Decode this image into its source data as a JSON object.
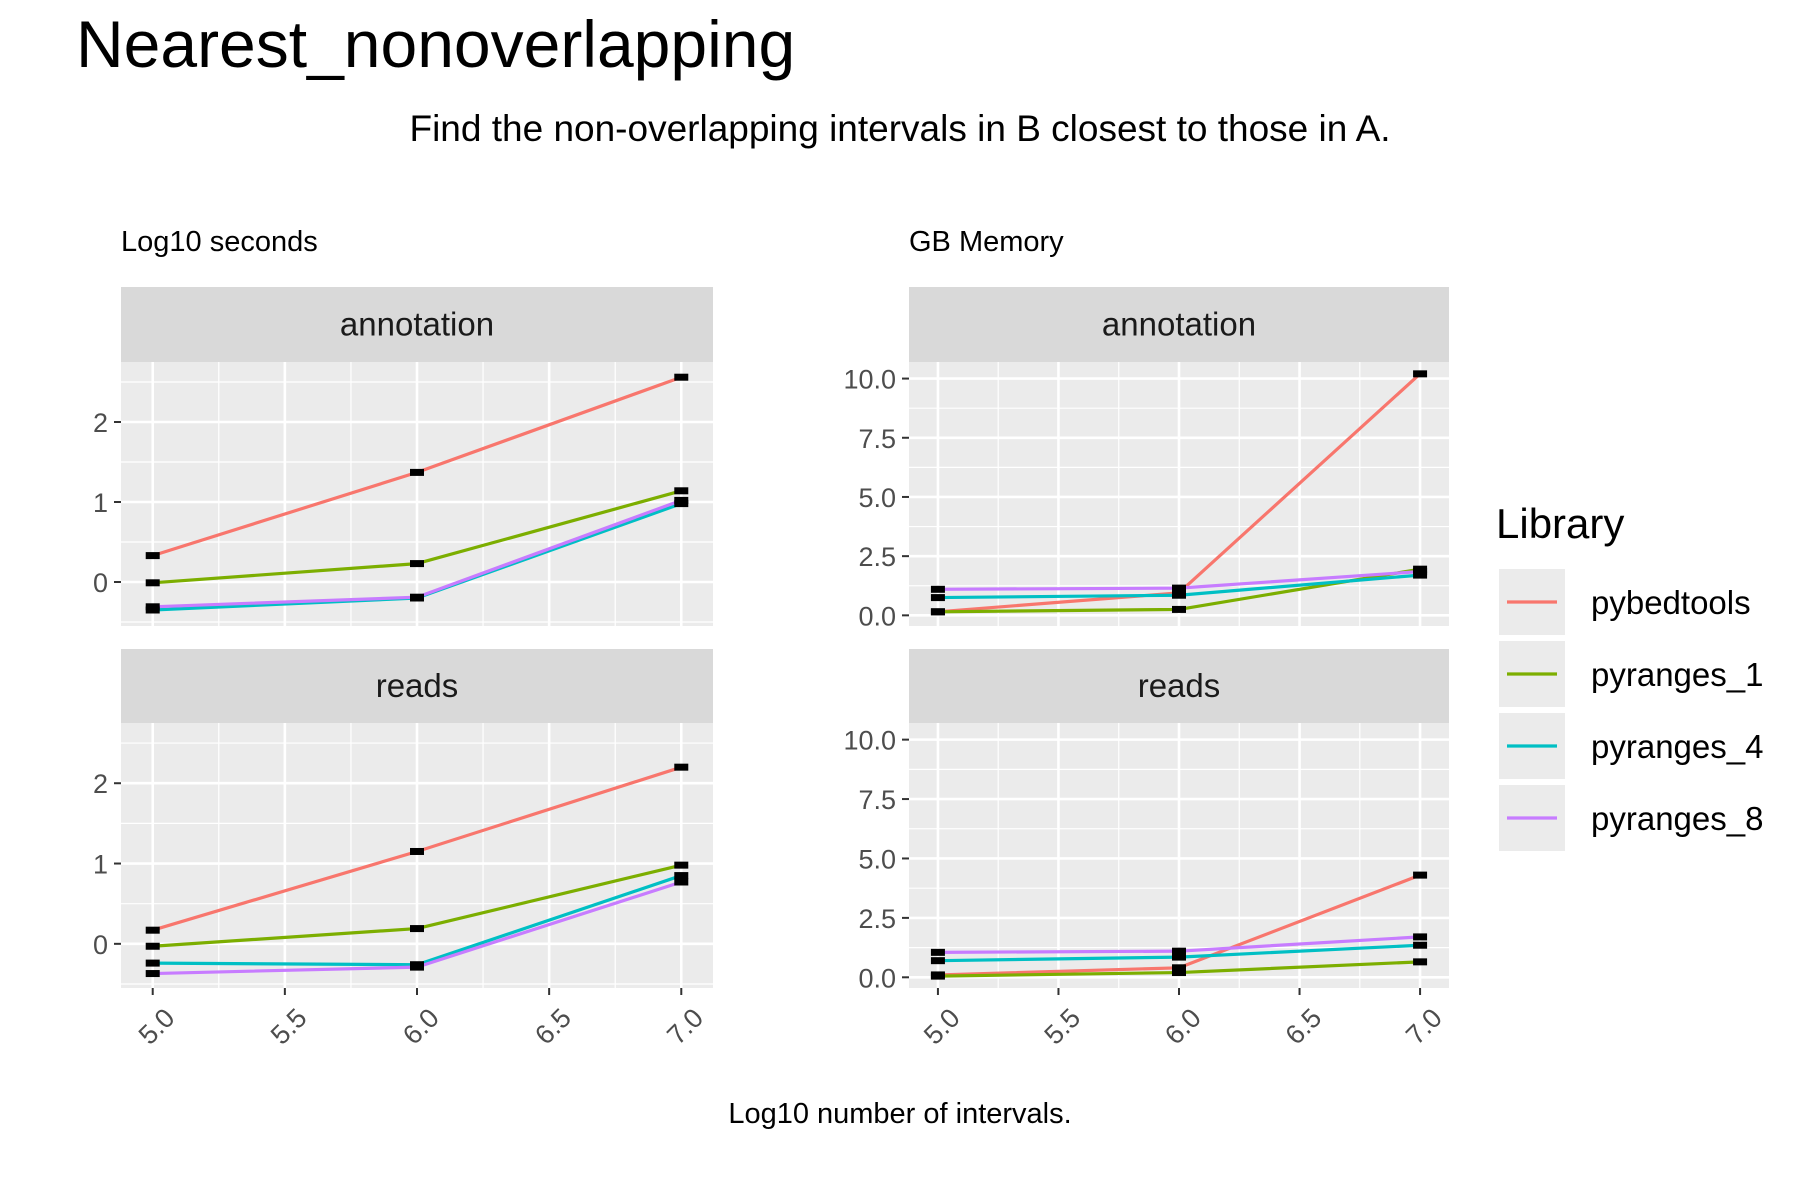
{
  "title": "Nearest_nonoverlapping",
  "subtitle": "Find the non-overlapping intervals in B closest to those in A.",
  "x_caption": "Log10 number of intervals.",
  "legend": {
    "title": "Library",
    "items": [
      {
        "name": "pybedtools",
        "color": "#F8766D"
      },
      {
        "name": "pyranges_1",
        "color": "#7CAE00"
      },
      {
        "name": "pyranges_4",
        "color": "#00BFC4"
      },
      {
        "name": "pyranges_8",
        "color": "#C77CFF"
      }
    ]
  },
  "chart_data": [
    {
      "type": "line",
      "panel_title": "Log10 seconds",
      "xlim": [
        4.88,
        7.12
      ],
      "ylim": [
        -0.55,
        2.75
      ],
      "x_ticks": [
        "5.0",
        "5.5",
        "6.0",
        "6.5",
        "7.0"
      ],
      "y_ticks": [
        "0",
        "1",
        "2"
      ],
      "facets": [
        {
          "strip": "annotation",
          "x": [
            5.0,
            6.0,
            7.0
          ],
          "series": [
            {
              "name": "pybedtools",
              "values": [
                0.33,
                1.37,
                2.56
              ]
            },
            {
              "name": "pyranges_1",
              "values": [
                -0.01,
                0.23,
                1.14
              ]
            },
            {
              "name": "pyranges_4",
              "values": [
                -0.35,
                -0.2,
                0.98
              ]
            },
            {
              "name": "pyranges_8",
              "values": [
                -0.31,
                -0.19,
                1.02
              ]
            }
          ]
        },
        {
          "strip": "reads",
          "x": [
            5.0,
            6.0,
            7.0
          ],
          "series": [
            {
              "name": "pybedtools",
              "values": [
                0.17,
                1.15,
                2.2
              ]
            },
            {
              "name": "pyranges_1",
              "values": [
                -0.03,
                0.19,
                0.98
              ]
            },
            {
              "name": "pyranges_4",
              "values": [
                -0.24,
                -0.26,
                0.85
              ]
            },
            {
              "name": "pyranges_8",
              "values": [
                -0.37,
                -0.29,
                0.77
              ]
            }
          ]
        }
      ]
    },
    {
      "type": "line",
      "panel_title": "GB Memory",
      "xlim": [
        4.88,
        7.12
      ],
      "ylim": [
        -0.45,
        10.7
      ],
      "x_ticks": [
        "5.0",
        "5.5",
        "6.0",
        "6.5",
        "7.0"
      ],
      "y_ticks": [
        "0.0",
        "2.5",
        "5.0",
        "7.5",
        "10.0"
      ],
      "facets": [
        {
          "strip": "annotation",
          "x": [
            5.0,
            6.0,
            7.0
          ],
          "series": [
            {
              "name": "pybedtools",
              "values": [
                0.15,
                0.95,
                10.2
              ]
            },
            {
              "name": "pyranges_1",
              "values": [
                0.15,
                0.25,
                1.95
              ]
            },
            {
              "name": "pyranges_4",
              "values": [
                0.75,
                0.85,
                1.7
              ]
            },
            {
              "name": "pyranges_8",
              "values": [
                1.1,
                1.15,
                1.85
              ]
            }
          ]
        },
        {
          "strip": "reads",
          "x": [
            5.0,
            6.0,
            7.0
          ],
          "series": [
            {
              "name": "pybedtools",
              "values": [
                0.1,
                0.4,
                4.3
              ]
            },
            {
              "name": "pyranges_1",
              "values": [
                0.05,
                0.2,
                0.65
              ]
            },
            {
              "name": "pyranges_4",
              "values": [
                0.7,
                0.85,
                1.35
              ]
            },
            {
              "name": "pyranges_8",
              "values": [
                1.05,
                1.1,
                1.7
              ]
            }
          ]
        }
      ]
    }
  ]
}
